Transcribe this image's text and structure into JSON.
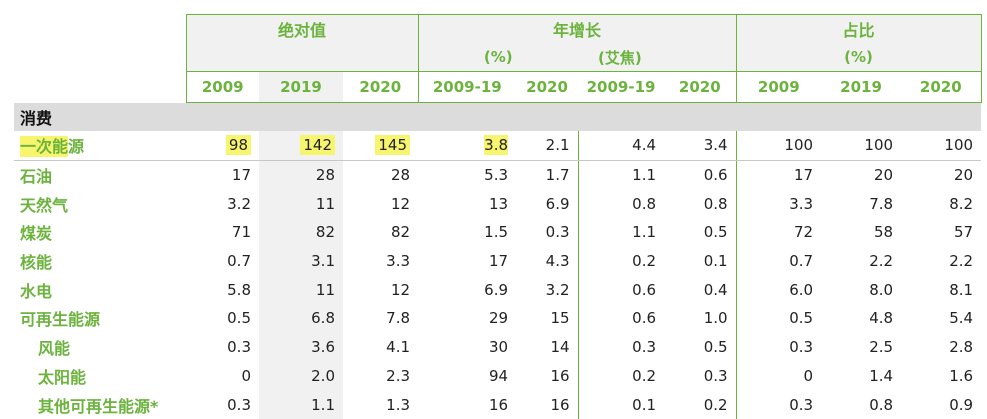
{
  "groups": {
    "absolute": "绝对值",
    "growth": "年增长",
    "share": "占比",
    "pct1": "(%)",
    "ej": "(艾焦)",
    "pct2": "(%)"
  },
  "years": [
    "2009",
    "2019",
    "2020",
    "2009-19",
    "2020",
    "2009-19",
    "2020",
    "2009",
    "2019",
    "2020"
  ],
  "section": "消费",
  "first_label_hl": "一次能",
  "first_label_rest": "源",
  "rows": [
    {
      "label": "一次能源",
      "values": [
        "98",
        "142",
        "145",
        "3.8",
        "2.1",
        "4.4",
        "3.4",
        "100",
        "100",
        "100"
      ]
    },
    {
      "label": "石油",
      "values": [
        "17",
        "28",
        "28",
        "5.3",
        "1.7",
        "1.1",
        "0.6",
        "17",
        "20",
        "20"
      ]
    },
    {
      "label": "天然气",
      "values": [
        "3.2",
        "11",
        "12",
        "13",
        "6.9",
        "0.8",
        "0.8",
        "3.3",
        "7.8",
        "8.2"
      ]
    },
    {
      "label": "煤炭",
      "values": [
        "71",
        "82",
        "82",
        "1.5",
        "0.3",
        "1.1",
        "0.5",
        "72",
        "58",
        "57"
      ]
    },
    {
      "label": "核能",
      "values": [
        "0.7",
        "3.1",
        "3.3",
        "17",
        "4.3",
        "0.2",
        "0.1",
        "0.7",
        "2.2",
        "2.2"
      ]
    },
    {
      "label": "水电",
      "values": [
        "5.8",
        "11",
        "12",
        "6.9",
        "3.2",
        "0.6",
        "0.4",
        "6.0",
        "8.0",
        "8.1"
      ]
    },
    {
      "label": "可再生能源",
      "values": [
        "0.5",
        "6.8",
        "7.8",
        "29",
        "15",
        "0.6",
        "1.0",
        "0.5",
        "4.8",
        "5.4"
      ]
    },
    {
      "label": "风能",
      "values": [
        "0.3",
        "3.6",
        "4.1",
        "30",
        "14",
        "0.3",
        "0.5",
        "0.3",
        "2.5",
        "2.8"
      ]
    },
    {
      "label": "太阳能",
      "values": [
        "0",
        "2.0",
        "2.3",
        "94",
        "16",
        "0.2",
        "0.3",
        "0",
        "1.4",
        "1.6"
      ]
    },
    {
      "label": "其他可再生能源*",
      "values": [
        "0.3",
        "1.1",
        "1.3",
        "16",
        "16",
        "0.1",
        "0.2",
        "0.3",
        "0.8",
        "0.9"
      ]
    }
  ],
  "colors": {
    "accent": "#6cb33e",
    "highlight": "#f6f56d",
    "shade": "#f1f1f1",
    "section_bg": "#dcdcdc"
  }
}
